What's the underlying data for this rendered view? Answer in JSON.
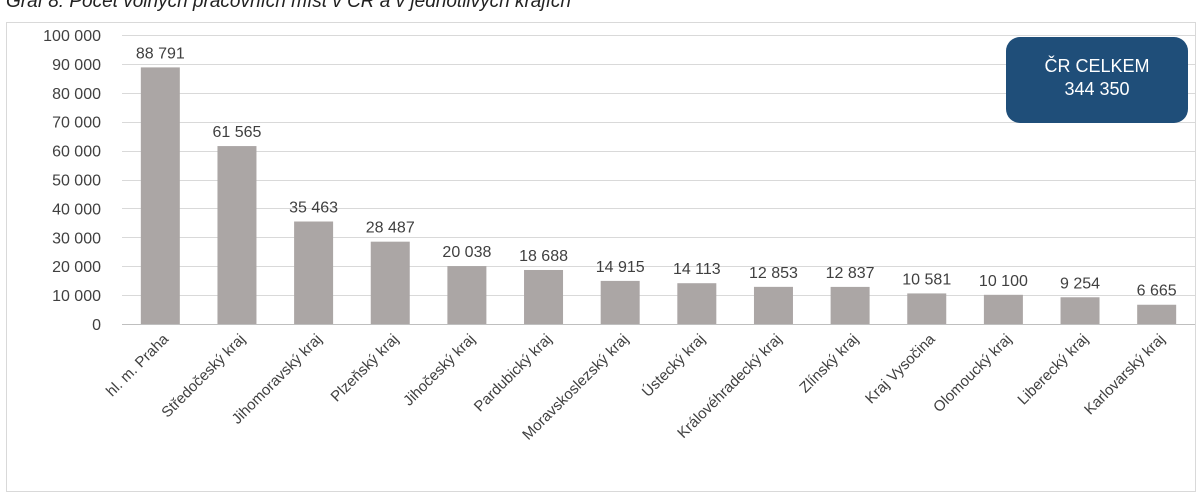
{
  "chart_data": {
    "type": "bar",
    "title": "Graf 8: Počet volných pracovních míst v ČR a v jednotlivých krajích",
    "xlabel": "",
    "ylabel": "",
    "ylim": [
      0,
      100000
    ],
    "yticks": [
      0,
      10000,
      20000,
      30000,
      40000,
      50000,
      60000,
      70000,
      80000,
      90000,
      100000
    ],
    "ytick_labels": [
      "0",
      "10 000",
      "20 000",
      "30 000",
      "40 000",
      "50 000",
      "60 000",
      "70 000",
      "80 000",
      "90 000",
      "100 000"
    ],
    "grid": true,
    "categories": [
      "hl. m. Praha",
      "Středočeský kraj",
      "Jihomoravský kraj",
      "Plzeňský kraj",
      "Jihočeský kraj",
      "Pardubický kraj",
      "Moravskoslezský kraj",
      "Ústecký kraj",
      "Královéhradecký kraj",
      "Zlínský kraj",
      "Kraj Vysočina",
      "Olomoucký kraj",
      "Liberecký kraj",
      "Karlovarský kraj"
    ],
    "values": [
      88791,
      61565,
      35463,
      28487,
      20038,
      18688,
      14915,
      14113,
      12853,
      12837,
      10581,
      10100,
      9254,
      6665
    ],
    "value_labels": [
      "88 791",
      "61 565",
      "35 463",
      "28 487",
      "20 038",
      "18 688",
      "14 915",
      "14 113",
      "12 853",
      "12 837",
      "10 581",
      "10 100",
      "9 254",
      "6 665"
    ],
    "colors": {
      "bar": "#aba6a5",
      "grid": "#d9d9d9",
      "axis": "#bfbfbf",
      "text": "#404040"
    }
  },
  "total_box": {
    "line1": "ČR CELKEM",
    "line2": "344 350",
    "color": "#1f4e79"
  }
}
